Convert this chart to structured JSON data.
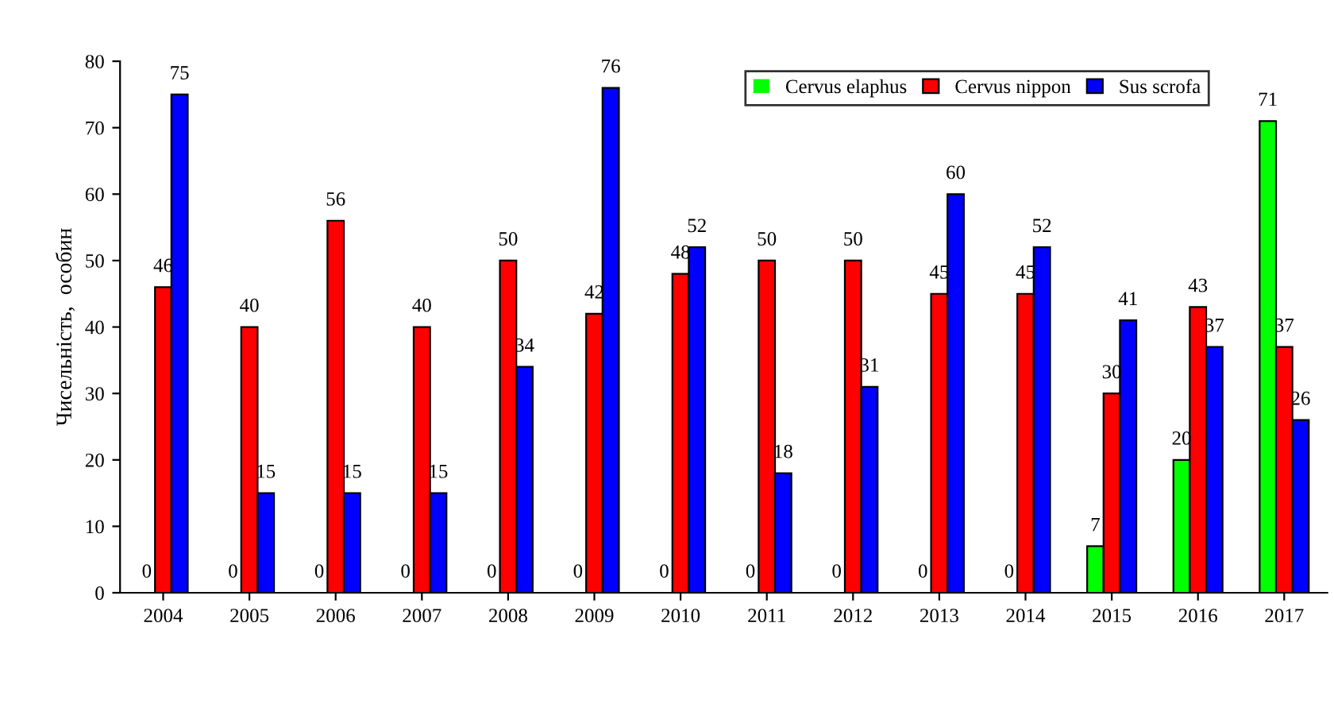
{
  "chart_data": {
    "type": "bar",
    "ylabel": "Чисельність,  особин",
    "categories": [
      "2004",
      "2005",
      "2006",
      "2007",
      "2008",
      "2009",
      "2010",
      "2011",
      "2012",
      "2013",
      "2014",
      "2015",
      "2016",
      "2017"
    ],
    "series": [
      {
        "name": "Cervus elaphus",
        "color": "#00ff00",
        "values": [
          0,
          0,
          0,
          0,
          0,
          0,
          0,
          0,
          0,
          0,
          0,
          7,
          20,
          71
        ]
      },
      {
        "name": "Cervus nippon",
        "color": "#ff0000",
        "values": [
          46,
          40,
          56,
          40,
          50,
          42,
          48,
          50,
          50,
          45,
          45,
          30,
          43,
          37
        ]
      },
      {
        "name": "Sus scrofa",
        "color": "#0000ff",
        "values": [
          75,
          15,
          15,
          15,
          34,
          76,
          52,
          18,
          31,
          60,
          52,
          41,
          37,
          26
        ]
      }
    ],
    "ylim": [
      0,
      80
    ],
    "yticks": [
      0,
      10,
      20,
      30,
      40,
      50,
      60,
      70,
      80
    ],
    "grid": false,
    "legend": "top right",
    "data_labels": true
  }
}
